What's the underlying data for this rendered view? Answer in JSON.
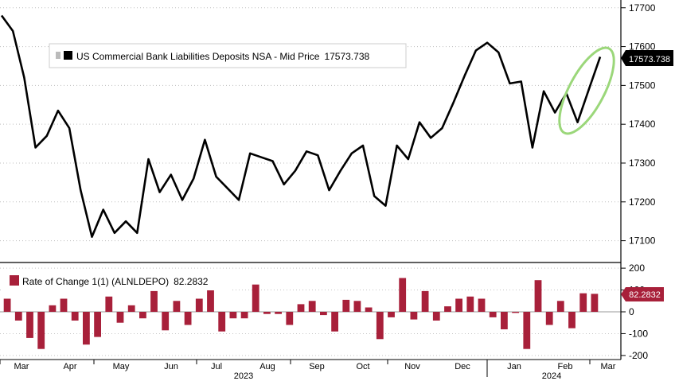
{
  "chart_data": [
    {
      "type": "line",
      "legend": {
        "label": "US Commercial Bank Liabilities Deposits NSA - Mid Price",
        "value": "17573.738",
        "placement": "top-left"
      },
      "last_value_label": "17573.738",
      "y_ticks": [
        "17700",
        "17600",
        "17500",
        "17400",
        "17300",
        "17200",
        "17100"
      ],
      "ylim": [
        17050,
        17720
      ],
      "grid": true,
      "highlight": "green ellipse around final upturn",
      "series": [
        {
          "color": "#000000",
          "values": [
            17680,
            17640,
            17520,
            17340,
            17370,
            17435,
            17390,
            17230,
            17110,
            17180,
            17120,
            17150,
            17120,
            17310,
            17225,
            17270,
            17205,
            17260,
            17360,
            17265,
            17235,
            17205,
            17325,
            17315,
            17305,
            17245,
            17280,
            17330,
            17320,
            17230,
            17280,
            17325,
            17345,
            17215,
            17190,
            17345,
            17310,
            17405,
            17365,
            17390,
            17455,
            17525,
            17590,
            17610,
            17585,
            17505,
            17510,
            17340,
            17485,
            17430,
            17480,
            17405,
            17490,
            17573.738
          ]
        }
      ]
    },
    {
      "type": "bar",
      "legend": {
        "label": "Rate of Change 1(1) (ALNLDEPO)",
        "value": "82.2832",
        "placement": "top-left"
      },
      "last_value_label": "82.2832",
      "y_ticks": [
        "200",
        "100",
        "0",
        "-100",
        "-200"
      ],
      "ylim": [
        -215,
        215
      ],
      "grid": true,
      "series": [
        {
          "color": "#a8203a",
          "values": [
            60,
            -40,
            -120,
            -170,
            30,
            60,
            -40,
            -150,
            -115,
            70,
            -50,
            30,
            -30,
            95,
            -85,
            50,
            -60,
            60,
            100,
            -90,
            -30,
            -30,
            125,
            -10,
            -10,
            -60,
            35,
            50,
            -15,
            -90,
            55,
            50,
            20,
            -125,
            -25,
            155,
            -35,
            95,
            -40,
            25,
            60,
            70,
            60,
            -25,
            -80,
            -5,
            -170,
            145,
            -60,
            50,
            -75,
            85,
            82.2832
          ]
        }
      ]
    }
  ],
  "x_axis": {
    "months": [
      "Mar",
      "Apr",
      "May",
      "Jun",
      "Jul",
      "Aug",
      "Sep",
      "Oct",
      "Nov",
      "Dec",
      "Jan",
      "Feb",
      "Mar"
    ],
    "years": [
      "2023",
      "2024"
    ]
  }
}
